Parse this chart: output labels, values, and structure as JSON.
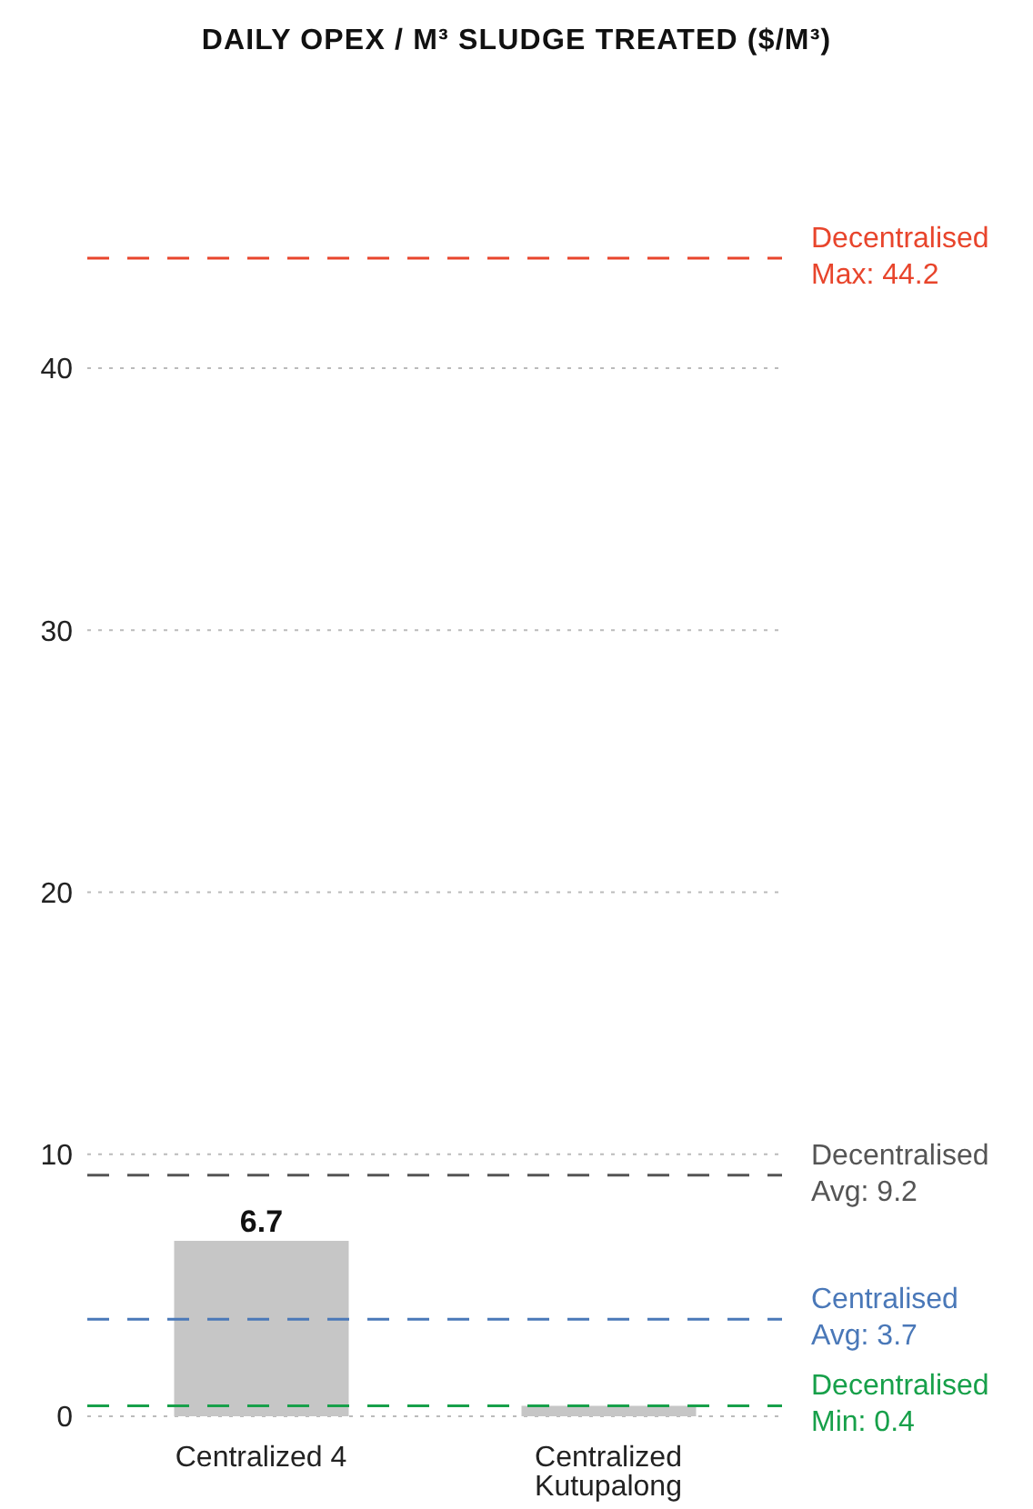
{
  "chart_data": {
    "type": "bar",
    "title": "DAILY OPEX / M³ SLUDGE TREATED ($/M³)",
    "categories": [
      "Centralized 4",
      "Centralized Kutupalong"
    ],
    "values": [
      6.7,
      0.4
    ],
    "color": "#c6c6c6",
    "value_labels": [
      "6.7",
      null
    ],
    "ylim": [
      0,
      44.2
    ],
    "yticks": [
      0,
      10,
      20,
      30,
      40
    ],
    "grid": "y",
    "ref_lines": [
      {
        "axis": "y",
        "value": 44.2,
        "label": "Decentralised Max: 44.2",
        "color": "#e8452c",
        "line_style": "dashed"
      },
      {
        "axis": "y",
        "value": 9.2,
        "label": "Decentralised Avg: 9.2",
        "color": "#555555",
        "line_style": "dashed"
      },
      {
        "axis": "y",
        "value": 3.7,
        "label": "Centralised Avg: 3.7",
        "color": "#4a78b8",
        "line_style": "dashed"
      },
      {
        "axis": "y",
        "value": 0.4,
        "label": "Decentralised Min: 0.4",
        "color": "#17a04a",
        "line_style": "dashed"
      }
    ]
  }
}
